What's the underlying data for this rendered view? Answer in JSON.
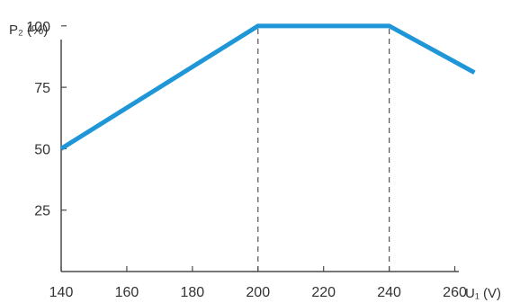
{
  "chart_data": {
    "type": "line",
    "title": "",
    "ylabel": "P₂ (%)",
    "xlabel": "U₁ (V)",
    "xlim": [
      140,
      270
    ],
    "ylim": [
      0,
      110
    ],
    "x_ticks": [
      140,
      160,
      180,
      200,
      220,
      240,
      260
    ],
    "y_ticks": [
      25,
      50,
      75,
      100
    ],
    "x_tick_labels": [
      "140",
      "160",
      "180",
      "200",
      "220",
      "240",
      "260"
    ],
    "y_tick_labels": [
      "25",
      "50",
      "75",
      "100"
    ],
    "grid": false,
    "series": [
      {
        "x": [
          140,
          200,
          240,
          266
        ],
        "y": [
          50,
          100,
          100,
          81
        ],
        "color": "#1E96D7"
      }
    ],
    "reference_lines": [
      {
        "x": 200,
        "y_to": 100,
        "style": "dashed"
      },
      {
        "x": 240,
        "y_to": 100,
        "style": "dashed"
      }
    ],
    "colors": {
      "axis": "#4a4a4a",
      "text": "#333333",
      "line": "#1E96D7",
      "dash": "#555555"
    }
  }
}
